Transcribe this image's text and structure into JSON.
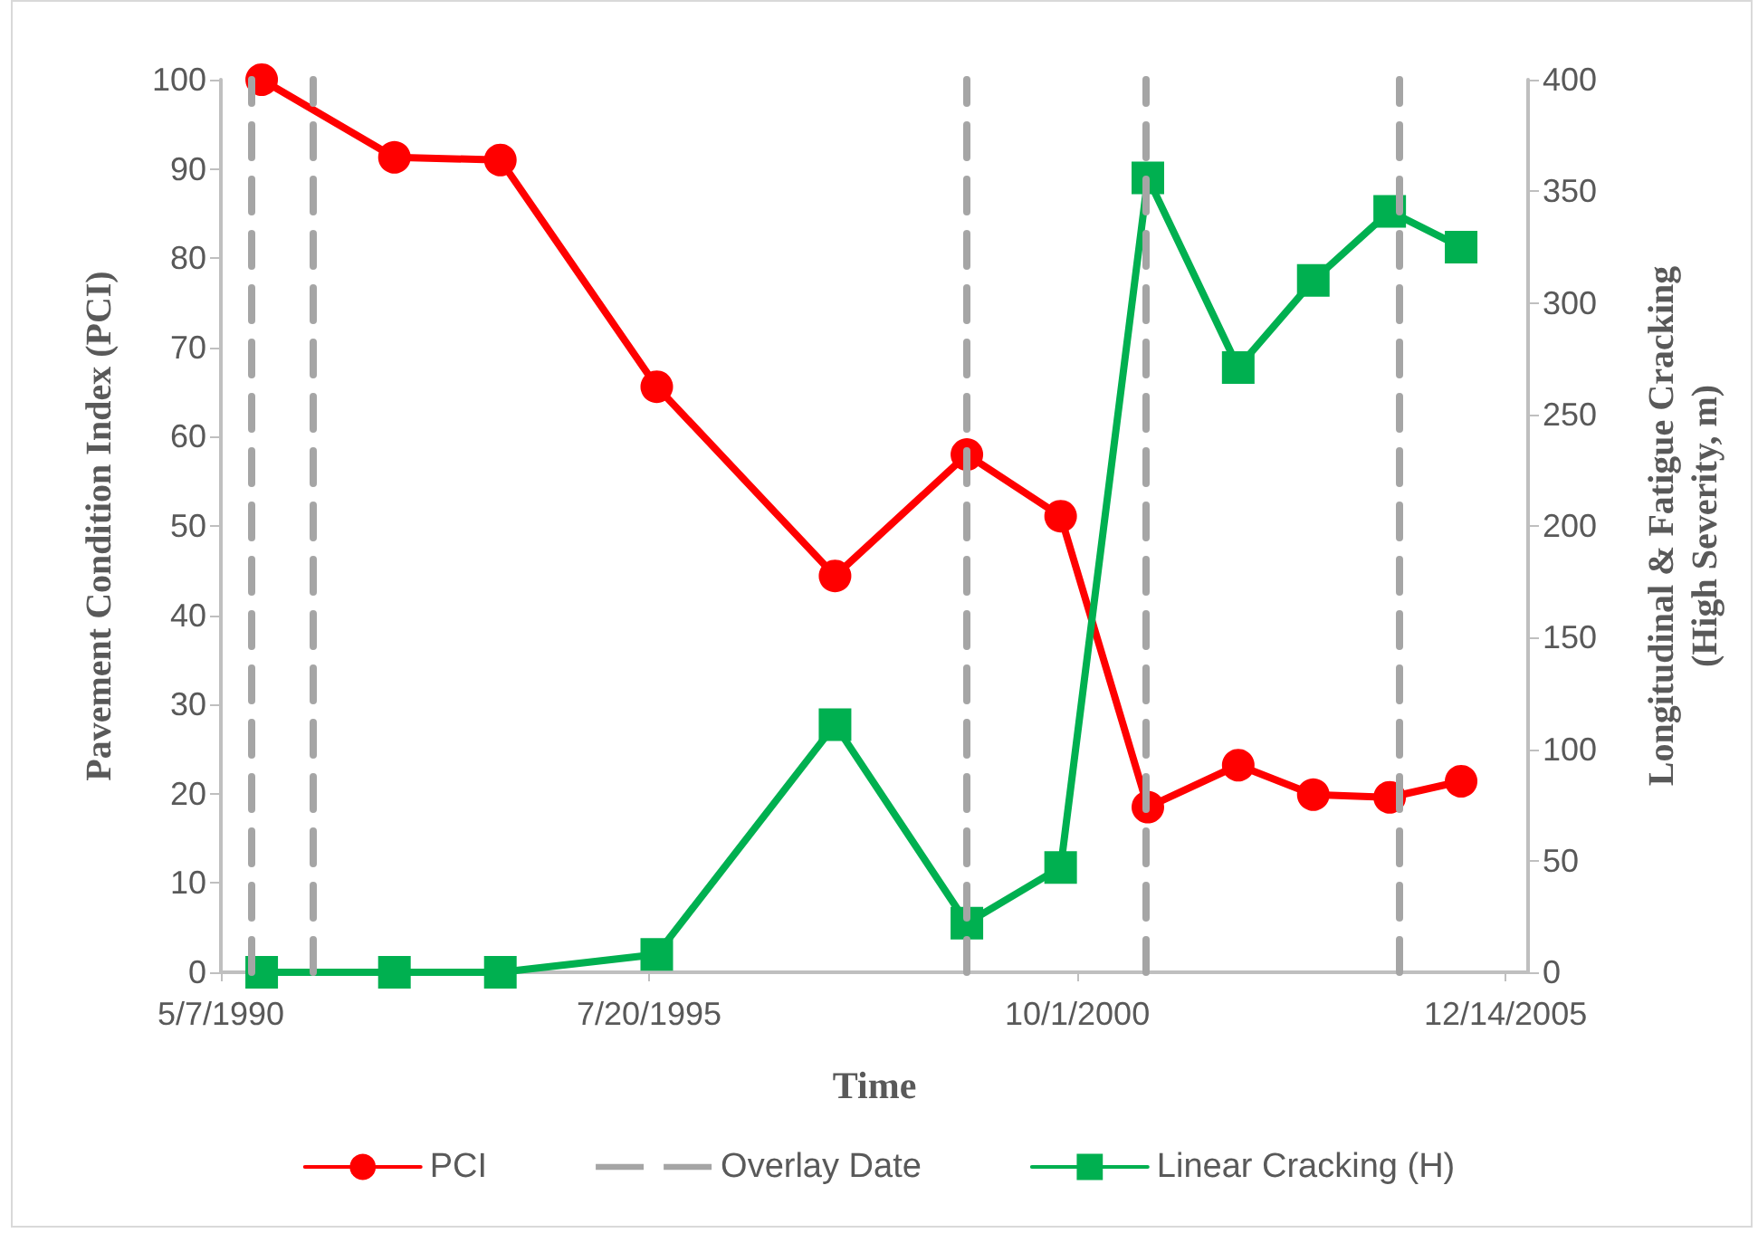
{
  "chart_data": {
    "type": "line",
    "xlabel": "Time",
    "ylabel": "Pavement Condition Index (PCI)",
    "y2label": "Longitudinal & Fatigue Cracking\n(High Severity, m)",
    "x": [
      "1990-11-04",
      "1992-06-15",
      "1993-09-28",
      "1995-08-23",
      "1997-10-22",
      "1999-05-30",
      "2000-07-19",
      "2001-08-10",
      "2002-09-15",
      "2003-08-14",
      "2004-07-18",
      "2005-05-31"
    ],
    "series": [
      {
        "name": "PCI",
        "color": "#ff0000",
        "marker": "circle",
        "values": [
          100,
          91.3,
          91.0,
          65.6,
          44.4,
          58.0,
          51.1,
          18.5,
          23.2,
          19.9,
          19.6,
          21.4
        ]
      },
      {
        "name": "Linear Cracking (H)",
        "color": "#00b050",
        "marker": "square",
        "axis": "y2",
        "values": [
          0,
          0,
          0,
          8,
          111,
          22,
          47,
          356,
          271,
          310,
          341,
          325
        ]
      }
    ],
    "xlim": [
      "1990-05-07",
      "2006-03-24"
    ],
    "xticks": [
      {
        "value": "1990-05-07",
        "label": "5/7/1990"
      },
      {
        "value": "1995-07-20",
        "label": "7/20/1995"
      },
      {
        "value": "2000-10-01",
        "label": "10/1/2000"
      },
      {
        "value": "2005-12-14",
        "label": "12/14/2005"
      }
    ],
    "ylim": [
      0,
      100
    ],
    "yticks": [
      0,
      10,
      20,
      30,
      40,
      50,
      60,
      70,
      80,
      90,
      100
    ],
    "y2lim": [
      0,
      400
    ],
    "y2ticks": [
      0,
      50,
      100,
      150,
      200,
      250,
      300,
      350,
      400
    ],
    "ref_lines": [
      {
        "axis": "x",
        "value": "1990-09-17",
        "label": "Overlay Date",
        "color": "#a5a5a5",
        "line_style": "dashed"
      },
      {
        "axis": "x",
        "value": "1991-06-16"
      },
      {
        "axis": "x",
        "value": "1999-05-30"
      },
      {
        "axis": "x",
        "value": "2001-07-30"
      },
      {
        "axis": "x",
        "value": "2004-08-27"
      }
    ],
    "grid": false,
    "legend": "bottom",
    "line_style": "solid"
  }
}
